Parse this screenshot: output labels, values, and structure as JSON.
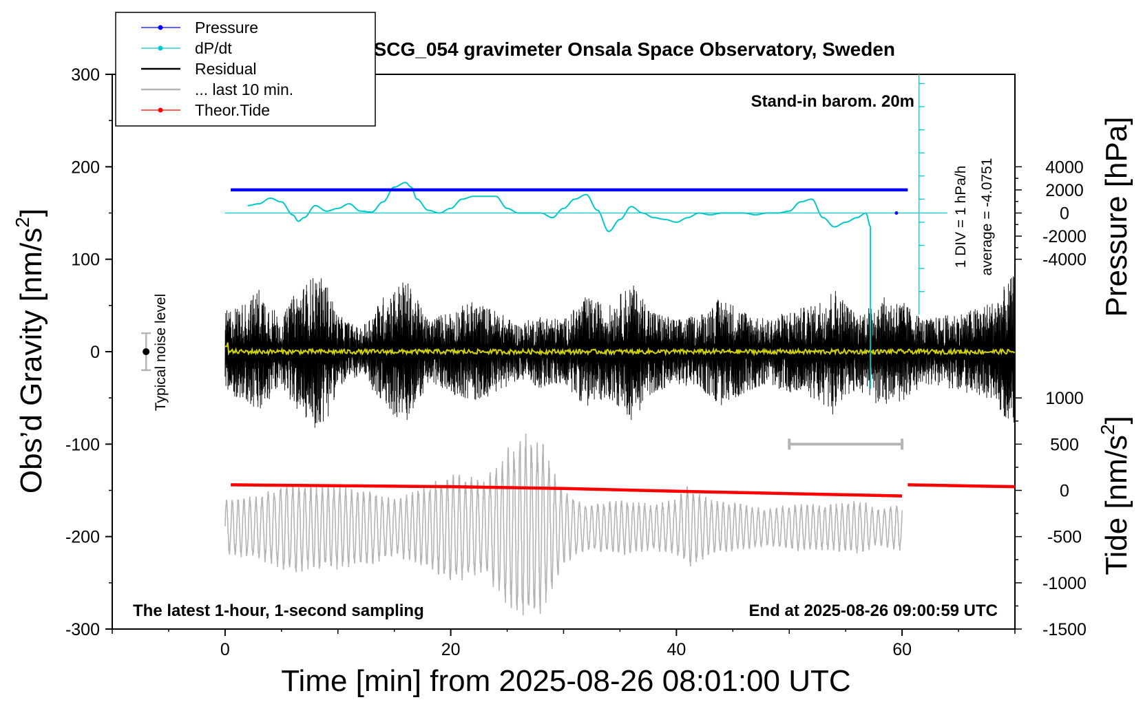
{
  "chart_data": {
    "type": "line",
    "title": "SCG_054 gravimeter Onsala Space Observatory, Sweden",
    "xlabel": "Time [min] from 2025-08-26 08:01:00 UTC",
    "ylabel_left": "Obs’d Gravity [nm/s²]",
    "ylabel_left_main": "Obs’d Gravity [nm/s",
    "ylabel_right_top": "Pressure [hPa]",
    "ylabel_right_bottom_main": "Tide [nm/s",
    "ylabel_right_bottom": "Tide [nm/s²]",
    "superscript": "2",
    "xlim": [
      -10,
      70
    ],
    "ylim_left": [
      -300,
      300
    ],
    "x_ticks": [
      0,
      20,
      40,
      60
    ],
    "y_ticks_left": [
      -300,
      -200,
      -100,
      0,
      100,
      200,
      300
    ],
    "x_tick_labels": [
      "0",
      "20",
      "40",
      "60"
    ],
    "y_tick_labels_left": [
      "-300",
      "-200",
      "-100",
      "0",
      "100",
      "200",
      "300"
    ],
    "pressure_ticks": [
      {
        "value": 4000,
        "label": "4000"
      },
      {
        "value": 2000,
        "label": "2000"
      },
      {
        "value": 0,
        "label": "0"
      },
      {
        "value": -2000,
        "label": "-2000"
      },
      {
        "value": -4000,
        "label": "-4000"
      }
    ],
    "pressure_axis": {
      "range": [
        -4000,
        4000
      ],
      "gravity_at_zero": 150,
      "gravity_per_hPa": 0.0125
    },
    "tide_ticks": [
      {
        "value": 1000,
        "label": "1000"
      },
      {
        "value": 500,
        "label": "500"
      },
      {
        "value": 0,
        "label": "0"
      },
      {
        "value": -500,
        "label": "-500"
      },
      {
        "value": -1000,
        "label": "-1000"
      },
      {
        "value": -1500,
        "label": "-1500"
      }
    ],
    "tide_axis": {
      "range": [
        -1500,
        1000
      ],
      "gravity_at_zero": -150,
      "gravity_per_unit": 0.1
    },
    "annotations": {
      "barometer": "Stand-in barom. 20m",
      "div_scale": "1 DIV = 1 hPa/h",
      "average": "average = -4.0751",
      "noise": "Typical noise level",
      "bottom_left": "The latest 1-hour, 1-second sampling",
      "bottom_right": "End at 2025-08-26 09:00:59 UTC"
    },
    "legend": [
      {
        "label": "Pressure",
        "color": "#0000ff",
        "marker": true
      },
      {
        "label": "dP/dt",
        "color": "#00c8c8",
        "marker": true
      },
      {
        "label": "Residual",
        "color": "#000000",
        "marker": false
      },
      {
        "label": "... last 10 min.",
        "color": "#b4b4b4",
        "marker": false
      },
      {
        "label": "Theor.Tide",
        "color": "#ff0000",
        "marker": true
      }
    ],
    "series": [
      {
        "name": "Pressure",
        "color": "#0000ff",
        "x_range": [
          0.5,
          60.5
        ],
        "y": 175
      },
      {
        "name": "dP/dt",
        "color": "#00c8c8",
        "x": [
          2,
          3,
          4,
          5,
          6,
          6.5,
          7,
          8,
          9,
          10,
          11,
          12,
          13,
          14,
          15,
          16,
          16.5,
          17,
          18,
          19,
          20,
          21,
          22,
          23,
          24,
          25,
          26,
          27,
          28,
          29,
          30,
          31,
          32,
          33,
          34,
          35,
          36,
          37,
          38,
          39,
          40,
          41,
          42,
          43,
          44,
          45,
          46,
          47,
          48,
          49,
          50,
          51,
          52,
          53,
          54,
          55,
          56,
          56.8,
          57.2,
          57.2
        ],
        "y": [
          158,
          160,
          166,
          162,
          148,
          141,
          145,
          158,
          152,
          155,
          160,
          152,
          151,
          162,
          178,
          183,
          178,
          165,
          153,
          150,
          155,
          165,
          168,
          168,
          168,
          155,
          150,
          150,
          150,
          145,
          155,
          165,
          170,
          153,
          130,
          143,
          157,
          150,
          145,
          143,
          140,
          145,
          150,
          148,
          150,
          150,
          150,
          148,
          150,
          150,
          152,
          162,
          165,
          145,
          135,
          140,
          145,
          150,
          135,
          -40
        ]
      },
      {
        "name": "dP/dt baseline",
        "color": "#00c8c8",
        "x_range": [
          0,
          64
        ],
        "y": 150
      },
      {
        "name": "Residual",
        "color": "#000000",
        "x_range": [
          0,
          70
        ],
        "y_center": 0,
        "envelope_x": [
          0,
          2,
          3,
          5,
          6,
          8,
          9,
          10,
          12,
          14,
          16,
          18,
          19,
          22,
          24,
          26,
          28,
          30,
          32,
          34,
          36,
          38,
          40,
          42,
          44,
          46,
          48,
          50,
          52,
          54,
          56,
          58,
          60,
          62,
          64,
          66,
          68,
          70
        ],
        "envelope": [
          45,
          55,
          70,
          35,
          60,
          85,
          75,
          40,
          25,
          60,
          80,
          35,
          40,
          55,
          45,
          30,
          40,
          35,
          60,
          50,
          75,
          45,
          35,
          40,
          60,
          45,
          35,
          45,
          50,
          70,
          40,
          60,
          55,
          35,
          40,
          45,
          55,
          85
        ]
      },
      {
        "name": "Smoothed residual",
        "color": "#d2d200",
        "x_range": [
          0,
          70
        ],
        "y": 0
      },
      {
        "name": "... last 10 min.",
        "color": "#b4b4b4",
        "x_range": [
          0,
          60
        ],
        "y_center": -190,
        "envelope_x": [
          0,
          3,
          6,
          8,
          10,
          13,
          15,
          18,
          20,
          23,
          25,
          26.5,
          28,
          30,
          32,
          35,
          38,
          40,
          41,
          43,
          46,
          48,
          50,
          52,
          54,
          56,
          58,
          59.5
        ],
        "envelope": [
          30,
          35,
          50,
          45,
          45,
          40,
          30,
          45,
          60,
          50,
          85,
          100,
          95,
          40,
          25,
          30,
          25,
          30,
          45,
          30,
          25,
          20,
          25,
          25,
          25,
          30,
          20,
          25
        ]
      },
      {
        "name": "Theor.Tide",
        "color": "#ff0000",
        "segments": [
          {
            "x": [
              0.5,
              10,
              20,
              30,
              40,
              50,
              60
            ],
            "y": [
              -144,
              -145,
              -146,
              -148,
              -151,
              -153.5,
              -156
            ]
          },
          {
            "x": [
              60.5,
              65,
              70
            ],
            "y": [
              -144,
              -145,
              -146
            ]
          }
        ]
      },
      {
        "name": "Noise level bar",
        "color": "#b4b4b4",
        "x": -7,
        "y_range": [
          -20,
          20
        ]
      },
      {
        "name": "Last 10 min marker",
        "color": "#b4b4b4",
        "x_range": [
          50,
          60
        ],
        "y": -100
      }
    ]
  }
}
